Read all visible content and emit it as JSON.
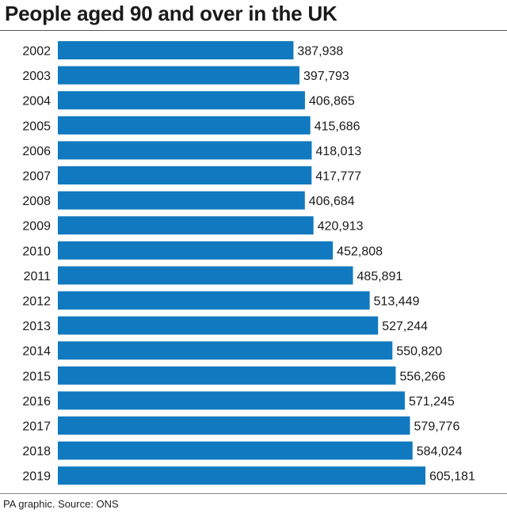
{
  "title": "People aged 90 and over in the UK",
  "source": "PA graphic. Source: ONS",
  "colors": {
    "bar": "#1079BF",
    "text": "#1a1a1a"
  },
  "chart_data": {
    "type": "bar",
    "orientation": "horizontal",
    "title": "People aged 90 and over in the UK",
    "categories": [
      "2002",
      "2003",
      "2004",
      "2005",
      "2006",
      "2007",
      "2008",
      "2009",
      "2010",
      "2011",
      "2012",
      "2013",
      "2014",
      "2015",
      "2016",
      "2017",
      "2018",
      "2019"
    ],
    "values": [
      387938,
      397793,
      406865,
      415686,
      418013,
      417777,
      406684,
      420913,
      452808,
      485891,
      513449,
      527244,
      550820,
      556266,
      571245,
      579776,
      584024,
      605181
    ],
    "value_labels": [
      "387,938",
      "397,793",
      "406,865",
      "415,686",
      "418,013",
      "417,777",
      "406,684",
      "420,913",
      "452,808",
      "485,891",
      "513,449",
      "527,244",
      "550,820",
      "556,266",
      "571,245",
      "579,776",
      "584,024",
      "605,181"
    ],
    "xlim": [
      0,
      605181
    ],
    "grid": false,
    "legend": "none"
  }
}
